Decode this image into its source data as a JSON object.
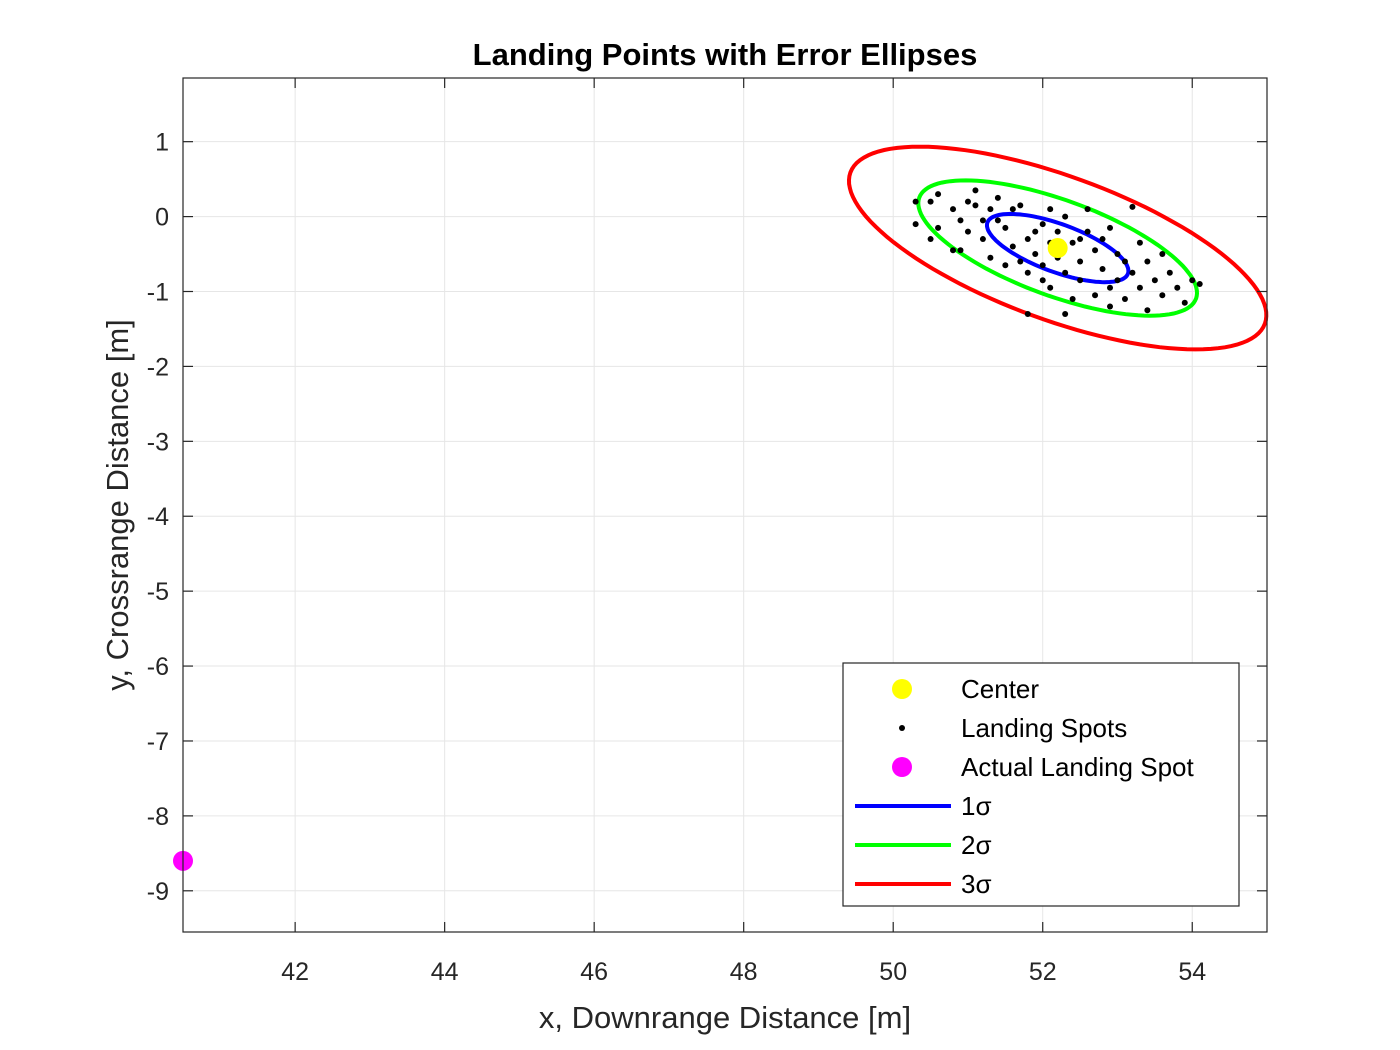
{
  "chart_data": {
    "type": "scatter",
    "title": "Landing Points with Error Ellipses",
    "xlabel": "x, Downrange Distance [m]",
    "ylabel": "y, Crossrange Distance [m]",
    "xlim": [
      40.5,
      55
    ],
    "ylim": [
      -9.55,
      1.85
    ],
    "xticks": [
      42,
      44,
      46,
      48,
      50,
      52,
      54
    ],
    "xtick_labels": [
      "42",
      "44",
      "46",
      "48",
      "50",
      "52",
      "54"
    ],
    "yticks": [
      1,
      0,
      -1,
      -2,
      -3,
      -4,
      -5,
      -6,
      -7,
      -8,
      -9
    ],
    "ytick_labels": [
      "1",
      "0",
      "-1",
      "-2",
      "-3",
      "-4",
      "-5",
      "-6",
      "-7",
      "-8",
      "-9"
    ],
    "grid": true,
    "legend_position": "bottom-right",
    "colors": {
      "center": "#ffff00",
      "spots": "#000000",
      "actual": "#ff00ff",
      "sigma1": "#0000ff",
      "sigma2": "#00ff00",
      "sigma3": "#ff0000",
      "grid": "#e6e6e6",
      "axes": "#262626"
    },
    "center": {
      "x": 52.2,
      "y": -0.42
    },
    "actual_landing_spot": {
      "x": 40.5,
      "y": -8.6
    },
    "ellipses": [
      {
        "name": "1σ",
        "cx": 52.2,
        "cy": -0.42,
        "semi_major": 1.0,
        "semi_minor": 0.32,
        "angle_deg": -20
      },
      {
        "name": "2σ",
        "cx": 52.2,
        "cy": -0.42,
        "semi_major": 1.97,
        "semi_minor": 0.64,
        "angle_deg": -20
      },
      {
        "name": "3σ",
        "cx": 52.2,
        "cy": -0.42,
        "semi_major": 2.95,
        "semi_minor": 0.96,
        "angle_deg": -20
      }
    ],
    "landing_spots": [
      [
        50.3,
        0.2
      ],
      [
        50.3,
        -0.1
      ],
      [
        50.5,
        0.2
      ],
      [
        50.5,
        -0.3
      ],
      [
        50.6,
        0.3
      ],
      [
        50.6,
        -0.15
      ],
      [
        50.8,
        0.1
      ],
      [
        50.8,
        -0.45
      ],
      [
        50.9,
        -0.05
      ],
      [
        50.9,
        -0.45
      ],
      [
        51.0,
        0.2
      ],
      [
        51.0,
        -0.2
      ],
      [
        51.1,
        0.35
      ],
      [
        51.1,
        0.15
      ],
      [
        51.2,
        -0.05
      ],
      [
        51.2,
        -0.3
      ],
      [
        51.3,
        0.1
      ],
      [
        51.3,
        -0.55
      ],
      [
        51.4,
        0.25
      ],
      [
        51.5,
        -0.15
      ],
      [
        51.5,
        -0.65
      ],
      [
        51.6,
        0.1
      ],
      [
        51.6,
        -0.4
      ],
      [
        51.7,
        0.15
      ],
      [
        51.7,
        -0.6
      ],
      [
        51.8,
        -0.3
      ],
      [
        51.8,
        -0.75
      ],
      [
        51.9,
        -0.2
      ],
      [
        51.9,
        -0.5
      ],
      [
        52.0,
        -0.1
      ],
      [
        52.0,
        -0.65
      ],
      [
        52.1,
        0.1
      ],
      [
        52.1,
        -0.35
      ],
      [
        52.1,
        -0.95
      ],
      [
        52.2,
        -0.2
      ],
      [
        52.2,
        -0.55
      ],
      [
        52.3,
        0.0
      ],
      [
        52.3,
        -0.75
      ],
      [
        52.3,
        -1.3
      ],
      [
        52.4,
        -0.35
      ],
      [
        52.4,
        -1.1
      ],
      [
        52.5,
        -0.6
      ],
      [
        52.5,
        -0.85
      ],
      [
        52.6,
        0.1
      ],
      [
        52.6,
        -0.2
      ],
      [
        52.7,
        -0.45
      ],
      [
        52.7,
        -1.05
      ],
      [
        52.8,
        -0.3
      ],
      [
        52.8,
        -0.7
      ],
      [
        52.9,
        -0.15
      ],
      [
        52.9,
        -0.95
      ],
      [
        53.0,
        -0.5
      ],
      [
        53.0,
        -0.85
      ],
      [
        53.1,
        -0.6
      ],
      [
        53.1,
        -1.1
      ],
      [
        53.2,
        0.13
      ],
      [
        53.2,
        -0.75
      ],
      [
        53.3,
        -0.35
      ],
      [
        53.3,
        -0.95
      ],
      [
        53.4,
        -0.6
      ],
      [
        53.4,
        -1.25
      ],
      [
        53.5,
        -0.85
      ],
      [
        53.6,
        -0.5
      ],
      [
        53.6,
        -1.05
      ],
      [
        53.7,
        -0.75
      ],
      [
        53.8,
        -0.95
      ],
      [
        53.9,
        -1.15
      ],
      [
        54.0,
        -0.85
      ],
      [
        54.1,
        -0.9
      ],
      [
        52.5,
        -0.3
      ],
      [
        51.4,
        -0.05
      ],
      [
        52.0,
        -0.85
      ],
      [
        51.8,
        -1.3
      ],
      [
        52.9,
        -1.2
      ]
    ],
    "legend": [
      {
        "label": "Center",
        "kind": "dot",
        "color": "#ffff00"
      },
      {
        "label": "Landing Spots",
        "kind": "point",
        "color": "#000000"
      },
      {
        "label": "Actual Landing Spot",
        "kind": "dot",
        "color": "#ff00ff"
      },
      {
        "label": "1σ",
        "kind": "line",
        "color": "#0000ff"
      },
      {
        "label": "2σ",
        "kind": "line",
        "color": "#00ff00"
      },
      {
        "label": "3σ",
        "kind": "line",
        "color": "#ff0000"
      }
    ]
  }
}
